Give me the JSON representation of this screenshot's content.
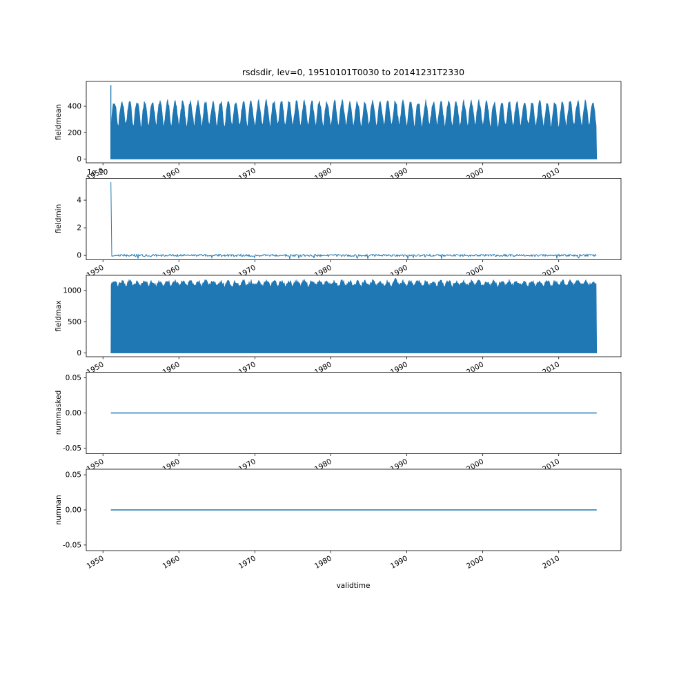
{
  "figure": {
    "title": "rsdsdir, lev=0, 19510101T0030 to 20141231T2330",
    "background": "#ffffff",
    "series_color": "#1f77b4"
  },
  "x_axis": {
    "label": "validtime",
    "tick_labels": [
      "1950",
      "1960",
      "1970",
      "1980",
      "1990",
      "2000",
      "2010"
    ],
    "tick_values": [
      1950,
      1960,
      1970,
      1980,
      1990,
      2000,
      2010
    ],
    "limits": [
      1947.8,
      2018.2
    ],
    "data_start": 1951.04,
    "data_end": 2015.0,
    "tick_rotation_deg": 30
  },
  "chart_data": [
    {
      "type": "area",
      "name": "fieldmean",
      "ylabel": "fieldmean",
      "ytick_labels": [
        "0",
        "200",
        "400"
      ],
      "ytick_values": [
        0,
        200,
        400
      ],
      "ylim": [
        -28,
        588
      ],
      "style": "seasonal-fill",
      "baseline": 0,
      "envelope_min": 245,
      "envelope_max": 435,
      "noise": 18,
      "spike": {
        "x": 1951.04,
        "value": 560
      }
    },
    {
      "type": "line",
      "name": "fieldmin",
      "ylabel": "fieldmin",
      "offset_text": "1e-10",
      "ytick_labels": [
        "0",
        "2",
        "4"
      ],
      "ytick_values": [
        0,
        2,
        4
      ],
      "ylim": [
        -0.32,
        5.58
      ],
      "style": "noisy-flat",
      "value": 0,
      "noise": 0.16,
      "spike": {
        "x": 1951.04,
        "value": 5.3
      }
    },
    {
      "type": "area",
      "name": "fieldmax",
      "ylabel": "fieldmax",
      "ytick_labels": [
        "0",
        "500",
        "1000"
      ],
      "ytick_values": [
        0,
        500,
        1000
      ],
      "ylim": [
        -60,
        1245
      ],
      "style": "seasonal-fill",
      "baseline": 0,
      "envelope_min": 1080,
      "envelope_max": 1150,
      "noise": 30,
      "peak": {
        "x": 1988.5,
        "value": 1185
      }
    },
    {
      "type": "line",
      "name": "nummasked",
      "ylabel": "nummasked",
      "ytick_labels": [
        "-0.05",
        "0.00",
        "0.05"
      ],
      "ytick_values": [
        -0.05,
        0,
        0.05
      ],
      "ylim": [
        -0.058,
        0.058
      ],
      "style": "flat",
      "value": 0
    },
    {
      "type": "line",
      "name": "numnan",
      "ylabel": "numnan",
      "ytick_labels": [
        "-0.05",
        "0.00",
        "0.05"
      ],
      "ytick_values": [
        -0.05,
        0,
        0.05
      ],
      "ylim": [
        -0.058,
        0.058
      ],
      "style": "flat",
      "value": 0
    }
  ]
}
